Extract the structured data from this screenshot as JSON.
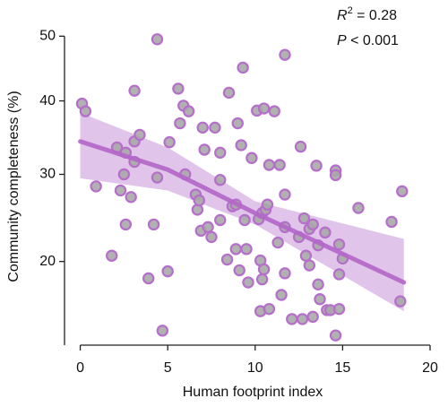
{
  "chart_data": {
    "type": "scatter",
    "x_label": "Human footprint index",
    "y_label": "Community completeness (%)",
    "y_scale": "sqrt",
    "xlim": [
      -0.9,
      20
    ],
    "ylim": [
      12.3,
      51.6
    ],
    "xticks": [
      0,
      5,
      10,
      15,
      20
    ],
    "yticks": [
      20,
      30,
      40,
      50
    ],
    "annotation": {
      "r_symbol": "R",
      "r_power": "2",
      "r_text": " = 0.28",
      "p_symbol": "P",
      "p_text": " < 0.001"
    },
    "series": [
      {
        "color": "#a8a8a8",
        "edge_color": "#b56fcb",
        "x": [
          0.1,
          0.3,
          0.9,
          1.8,
          2.1,
          2.3,
          2.5,
          2.6,
          2.6,
          2.9,
          3.1,
          3.1,
          3.1,
          3.4,
          3.9,
          4.2,
          4.4,
          4.4,
          4.7,
          5.0,
          5.1,
          5.6,
          5.9,
          6.0,
          6.2,
          5.7,
          6.6,
          6.7,
          6.8,
          6.9,
          7.0,
          7.1,
          7.3,
          7.5,
          7.7,
          8.0,
          8.0,
          8.0,
          8.4,
          8.5,
          8.7,
          8.9,
          9.0,
          8.9,
          9.1,
          9.2,
          9.3,
          9.4,
          9.5,
          9.6,
          9.8,
          10.1,
          10.2,
          10.3,
          10.5,
          10.5,
          10.4,
          10.3,
          10.4,
          10.6,
          10.7,
          10.8,
          10.8,
          11.1,
          11.3,
          11.4,
          11.5,
          11.7,
          11.7,
          11.7,
          11.7,
          12.1,
          12.6,
          12.5,
          12.8,
          12.7,
          12.9,
          13.3,
          13.1,
          13.1,
          13.5,
          13.3,
          13.6,
          13.6,
          13.7,
          14.0,
          14.1,
          14.3,
          14.6,
          14.6,
          14.6,
          14.8,
          14.8,
          15.0,
          14.8,
          15.9,
          17.8,
          18.3,
          18.4
        ],
        "values": [
          39.6,
          38.5,
          28.5,
          20.6,
          33.5,
          28.0,
          30.0,
          24.0,
          32.8,
          27.2,
          34.3,
          41.5,
          31.6,
          35.2,
          18.3,
          24.0,
          49.5,
          29.6,
          13.5,
          19.0,
          34.2,
          41.8,
          39.3,
          30.0,
          38.5,
          36.8,
          27.5,
          25.7,
          26.8,
          23.3,
          36.2,
          33.2,
          23.7,
          22.6,
          36.2,
          32.8,
          29.3,
          24.5,
          20.2,
          41.2,
          26.1,
          26.3,
          36.8,
          21.3,
          19.1,
          33.8,
          45.0,
          24.5,
          21.3,
          17.9,
          32.1,
          38.6,
          24.6,
          20.1,
          19.2,
          38.9,
          18.2,
          15.2,
          25.3,
          25.7,
          26.3,
          31.2,
          15.4,
          38.5,
          22.0,
          31.2,
          16.7,
          47.0,
          27.5,
          18.8,
          23.7,
          14.5,
          33.6,
          22.6,
          24.7,
          14.5,
          20.6,
          14.7,
          23.5,
          19.6,
          31.1,
          24.0,
          21.7,
          17.7,
          16.3,
          23.1,
          15.3,
          15.3,
          30.5,
          29.9,
          13.1,
          21.8,
          18.7,
          20.3,
          15.4,
          25.9,
          24.3,
          16.1,
          27.9
        ]
      }
    ],
    "fit": {
      "color": "#b366c8",
      "band_color": "#d6b0e2",
      "x": [
        0,
        5,
        10,
        18.5
      ],
      "values": [
        34.3,
        30.6,
        25.3,
        17.9
      ],
      "lower": [
        29.5,
        28.0,
        24.0,
        15.2
      ],
      "upper": [
        38.3,
        33.5,
        26.7,
        22.4
      ]
    }
  }
}
